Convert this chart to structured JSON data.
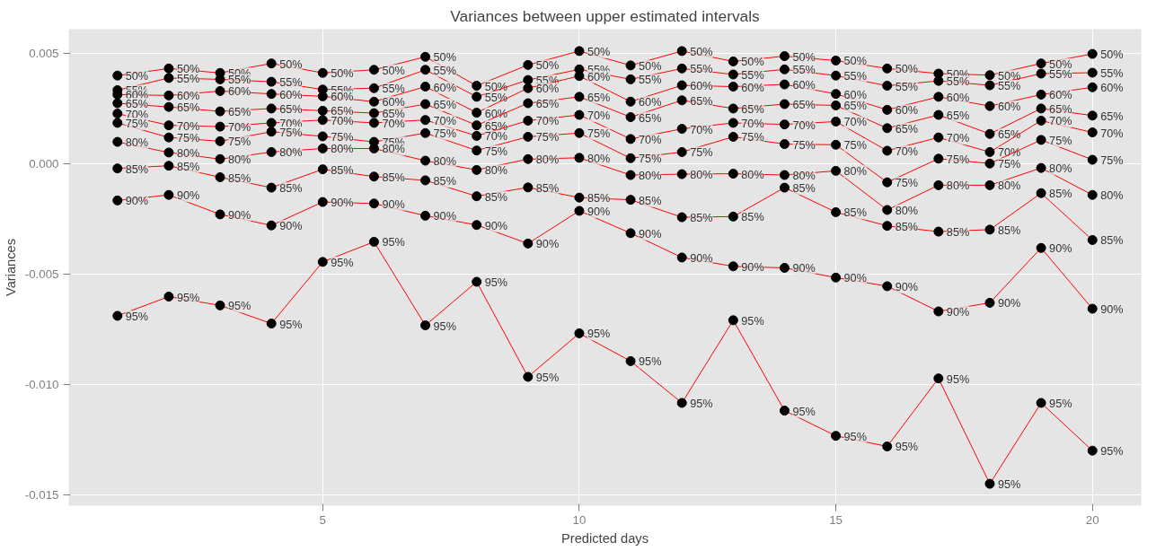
{
  "chart_data": {
    "type": "line",
    "title": "Variances between upper estimated intervals",
    "xlabel": "Predicted days",
    "ylabel": "Variances",
    "x": [
      1,
      2,
      3,
      4,
      5,
      6,
      7,
      8,
      9,
      10,
      11,
      12,
      13,
      14,
      15,
      16,
      17,
      18,
      19,
      20
    ],
    "xlim": [
      0.05,
      20.95
    ],
    "ylim": [
      -0.01548,
      0.00608
    ],
    "xticks": [
      5,
      10,
      15,
      20
    ],
    "yticks": [
      {
        "value": 0.005,
        "label": "0.005"
      },
      {
        "value": 0,
        "label": "0.000"
      },
      {
        "value": -0.005,
        "label": "-0.005"
      },
      {
        "value": -0.01,
        "label": "-0.010"
      },
      {
        "value": -0.015,
        "label": "-0.015"
      }
    ],
    "grid": true,
    "legend": false,
    "marker": "circle",
    "line_style": "solid",
    "series": [
      {
        "name": "50%",
        "color": "#ff0000",
        "values": [
          0.00398,
          0.0043,
          0.0041,
          0.00453,
          0.0041,
          0.00424,
          0.00483,
          0.00352,
          0.00446,
          0.00509,
          0.00444,
          0.00509,
          0.00462,
          0.00486,
          0.00466,
          0.0043,
          0.00407,
          0.004,
          0.00453,
          0.00496
        ]
      },
      {
        "name": "55%",
        "color": "#ff0000",
        "values": [
          0.00332,
          0.00387,
          0.00381,
          0.0037,
          0.00335,
          0.00341,
          0.00424,
          0.00302,
          0.00378,
          0.00426,
          0.00381,
          0.0043,
          0.00403,
          0.00426,
          0.00398,
          0.00352,
          0.00374,
          0.00354,
          0.00407,
          0.00411
        ]
      },
      {
        "name": "60%",
        "color": "#ff0000",
        "values": [
          0.00312,
          0.00308,
          0.00328,
          0.00315,
          0.00304,
          0.0028,
          0.00348,
          0.0023,
          0.00341,
          0.00396,
          0.0028,
          0.00354,
          0.00348,
          0.00358,
          0.00315,
          0.00243,
          0.00302,
          0.0026,
          0.00312,
          0.00345
        ]
      },
      {
        "name": "65%",
        "color": "#ff0000",
        "values": [
          0.00273,
          0.00256,
          0.00236,
          0.00249,
          0.00239,
          0.00228,
          0.00269,
          0.00173,
          0.00273,
          0.00302,
          0.0021,
          0.00286,
          0.00249,
          0.00269,
          0.00263,
          0.0016,
          0.0022,
          0.00134,
          0.00249,
          0.00217
        ]
      },
      {
        "name": "70%",
        "color": "#ff0000",
        "values": [
          0.00226,
          0.00173,
          0.00167,
          0.00184,
          0.00197,
          0.00184,
          0.00197,
          0.00125,
          0.00194,
          0.0022,
          0.00111,
          0.00157,
          0.00184,
          0.00177,
          0.0019,
          0.00058,
          0.00118,
          0.00052,
          0.00194,
          0.00141
        ]
      },
      {
        "name": "75%",
        "color": "#ff0000",
        "values": [
          0.00184,
          0.00118,
          0.00101,
          0.00144,
          0.00123,
          0.00098,
          0.00138,
          0.00059,
          0.00121,
          0.00138,
          0.00024,
          0.00052,
          0.00121,
          0.00088,
          0.00085,
          -0.00085,
          0.00022,
          0.0,
          0.00107,
          0.00017
        ]
      },
      {
        "name": "80%",
        "color": "#ff0000",
        "values": [
          0.00098,
          0.0005,
          0.0002,
          0.00052,
          0.00068,
          0.00068,
          0.00013,
          -0.00029,
          0.0002,
          0.00026,
          -0.00052,
          -0.00048,
          -0.00046,
          -0.00052,
          -0.00033,
          -0.0021,
          -0.00098,
          -0.00098,
          -0.0002,
          -0.00142
        ]
      },
      {
        "name": "85%",
        "color": "#ff0000",
        "values": [
          -0.00022,
          -0.0001,
          -0.00062,
          -0.00109,
          -0.00026,
          -0.00059,
          -0.00076,
          -0.00148,
          -0.00108,
          -0.00154,
          -0.00164,
          -0.00243,
          -0.0024,
          -0.00109,
          -0.0022,
          -0.00282,
          -0.00308,
          -0.00299,
          -0.00134,
          -0.00346
        ]
      },
      {
        "name": "90%",
        "color": "#ff0000",
        "values": [
          -0.00167,
          -0.00142,
          -0.0023,
          -0.0028,
          -0.00174,
          -0.00181,
          -0.00236,
          -0.00278,
          -0.00362,
          -0.00214,
          -0.00315,
          -0.00425,
          -0.00465,
          -0.00472,
          -0.00516,
          -0.00555,
          -0.00669,
          -0.0063,
          -0.00382,
          -0.00657
        ]
      },
      {
        "name": "95%",
        "color": "#ff0000",
        "values": [
          -0.00689,
          -0.00602,
          -0.00642,
          -0.00724,
          -0.00445,
          -0.00354,
          -0.00732,
          -0.00535,
          -0.00965,
          -0.00768,
          -0.00894,
          -0.01083,
          -0.00709,
          -0.01118,
          -0.01232,
          -0.0128,
          -0.00972,
          -0.01449,
          -0.01083,
          -0.01299
        ]
      }
    ]
  }
}
